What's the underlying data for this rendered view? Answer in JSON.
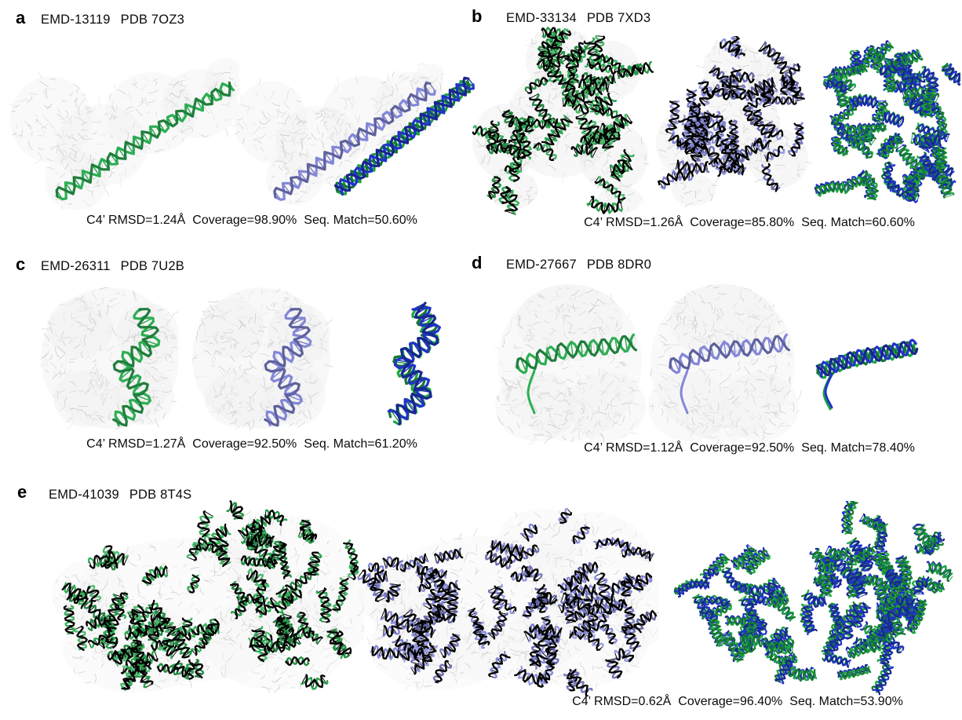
{
  "panels": [
    {
      "letter": "a",
      "emd": "EMD-13119",
      "pdb": "PDB 7OZ3",
      "metrics": {
        "rmsd": "C4’ RMSD=1.24Å",
        "coverage": "Coverage=98.90%",
        "seq_match": "Seq. Match=50.60%"
      }
    },
    {
      "letter": "b",
      "emd": "EMD-33134",
      "pdb": "PDB 7XD3",
      "metrics": {
        "rmsd": "C4’ RMSD=1.26Å",
        "coverage": "Coverage=85.80%",
        "seq_match": "Seq. Match=60.60%"
      }
    },
    {
      "letter": "c",
      "emd": "EMD-26311",
      "pdb": "PDB 7U2B",
      "metrics": {
        "rmsd": "C4’ RMSD=1.27Å",
        "coverage": "Coverage=92.50%",
        "seq_match": "Seq. Match=61.20%"
      }
    },
    {
      "letter": "d",
      "emd": "EMD-27667",
      "pdb": "PDB 8DR0",
      "metrics": {
        "rmsd": "C4’ RMSD=1.12Å",
        "coverage": "Coverage=92.50%",
        "seq_match": "Seq. Match=78.40%"
      }
    },
    {
      "letter": "e",
      "emd": "EMD-41039",
      "pdb": "PDB 8T4S",
      "metrics": {
        "rmsd": "C4’ RMSD=0.62Å",
        "coverage": "Coverage=96.40%",
        "seq_match": "Seq. Match=53.90%"
      }
    }
  ],
  "colors": {
    "model_green": "#2cae53",
    "model_blue": "#8387d8",
    "overlay_green": "#1ca63e",
    "overlay_blue": "#2133c9",
    "density_gray": "#cccccc",
    "density_fill": "#efefef",
    "text": "#0b0b0b",
    "background": "#ffffff"
  }
}
